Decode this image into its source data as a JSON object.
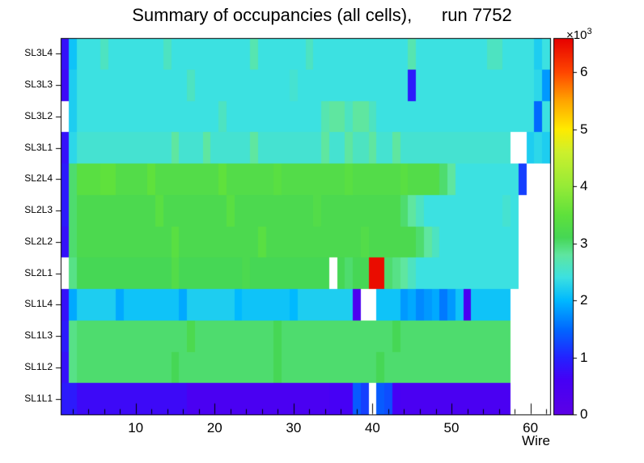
{
  "title": "Summary of occupancies (all cells),      run 7752",
  "chart_data": {
    "type": "heatmap",
    "title": "Summary of occupancies (all cells),      run 7752",
    "xlabel": "Wire",
    "ylabel": "",
    "x_min": 0.5,
    "x_max": 62.5,
    "n_wires": 62,
    "x_major_ticks": [
      10,
      20,
      30,
      40,
      50,
      60
    ],
    "x_minor_tick_step": 2,
    "row_order": "top-to-bottom",
    "values_unit": "×10³ counts",
    "colorbar": {
      "min": 0,
      "max": 6.6,
      "ticks": [
        0,
        1,
        2,
        3,
        4,
        5,
        6
      ],
      "multiplier_base": "×10",
      "multiplier_exp": "3"
    },
    "palette": [
      [
        0.0,
        92,
        0,
        230
      ],
      [
        0.091,
        70,
        0,
        245
      ],
      [
        0.152,
        35,
        35,
        255
      ],
      [
        0.227,
        0,
        105,
        255
      ],
      [
        0.303,
        0,
        185,
        255
      ],
      [
        0.364,
        60,
        225,
        225
      ],
      [
        0.424,
        95,
        230,
        160
      ],
      [
        0.47,
        70,
        215,
        85
      ],
      [
        0.53,
        95,
        225,
        60
      ],
      [
        0.606,
        150,
        235,
        55
      ],
      [
        0.697,
        205,
        240,
        45
      ],
      [
        0.758,
        255,
        235,
        0
      ],
      [
        0.833,
        255,
        165,
        0
      ],
      [
        0.909,
        255,
        70,
        0
      ],
      [
        1.0,
        230,
        0,
        0
      ]
    ],
    "rows": [
      {
        "label": "SL3L4",
        "segments": [
          [
            1,
            0.8
          ],
          [
            1,
            2.1
          ],
          [
            3,
            2.4
          ],
          [
            1,
            2.6
          ],
          [
            7,
            2.4
          ],
          [
            1,
            2.6
          ],
          [
            10,
            2.4
          ],
          [
            1,
            2.7
          ],
          [
            6,
            2.4
          ],
          [
            1,
            2.6
          ],
          [
            12,
            2.4
          ],
          [
            1,
            2.7
          ],
          [
            9,
            2.4
          ],
          [
            2,
            2.6
          ],
          [
            4,
            2.4
          ],
          [
            1,
            2.2
          ],
          [
            1,
            2.4
          ]
        ]
      },
      {
        "label": "SL3L3",
        "segments": [
          [
            1,
            0.7
          ],
          [
            1,
            2.2
          ],
          [
            14,
            2.4
          ],
          [
            1,
            2.6
          ],
          [
            12,
            2.4
          ],
          [
            1,
            2.5
          ],
          [
            14,
            2.4
          ],
          [
            1,
            0.9
          ],
          [
            15,
            2.4
          ],
          [
            1,
            2.3
          ],
          [
            1,
            1.8
          ]
        ]
      },
      {
        "label": "SL3L2",
        "segments": [
          [
            1,
            null
          ],
          [
            1,
            2.2
          ],
          [
            18,
            2.4
          ],
          [
            1,
            2.6
          ],
          [
            12,
            2.4
          ],
          [
            1,
            2.7
          ],
          [
            2,
            2.8
          ],
          [
            1,
            2.6
          ],
          [
            2,
            2.8
          ],
          [
            1,
            2.6
          ],
          [
            20,
            2.4
          ],
          [
            1,
            1.5
          ],
          [
            1,
            2.4
          ]
        ]
      },
      {
        "label": "SL3L1",
        "segments": [
          [
            1,
            0.8
          ],
          [
            1,
            2.3
          ],
          [
            12,
            2.5
          ],
          [
            1,
            2.8
          ],
          [
            3,
            2.5
          ],
          [
            1,
            2.8
          ],
          [
            5,
            2.5
          ],
          [
            1,
            2.8
          ],
          [
            8,
            2.5
          ],
          [
            1,
            2.8
          ],
          [
            2,
            2.5
          ],
          [
            1,
            2.8
          ],
          [
            2,
            2.6
          ],
          [
            1,
            2.8
          ],
          [
            2,
            2.5
          ],
          [
            1,
            2.8
          ],
          [
            14,
            2.5
          ],
          [
            2,
            null
          ],
          [
            1,
            2.2
          ],
          [
            1,
            2.3
          ],
          [
            1,
            2.2
          ]
        ]
      },
      {
        "label": "SL2L4",
        "segments": [
          [
            1,
            0.9
          ],
          [
            1,
            3.0
          ],
          [
            3,
            3.4
          ],
          [
            2,
            3.5
          ],
          [
            4,
            3.3
          ],
          [
            1,
            3.5
          ],
          [
            8,
            3.3
          ],
          [
            1,
            3.5
          ],
          [
            6,
            3.3
          ],
          [
            1,
            3.4
          ],
          [
            8,
            3.3
          ],
          [
            1,
            3.4
          ],
          [
            6,
            3.3
          ],
          [
            1,
            3.4
          ],
          [
            4,
            3.3
          ],
          [
            1,
            3.0
          ],
          [
            1,
            2.8
          ],
          [
            8,
            2.4
          ],
          [
            1,
            1.2
          ],
          [
            3,
            null
          ]
        ]
      },
      {
        "label": "SL2L3",
        "segments": [
          [
            1,
            0.9
          ],
          [
            1,
            3.0
          ],
          [
            10,
            3.2
          ],
          [
            1,
            3.4
          ],
          [
            8,
            3.2
          ],
          [
            1,
            3.4
          ],
          [
            10,
            3.2
          ],
          [
            1,
            3.3
          ],
          [
            10,
            3.2
          ],
          [
            1,
            3.0
          ],
          [
            1,
            2.8
          ],
          [
            1,
            2.6
          ],
          [
            10,
            2.4
          ],
          [
            1,
            2.5
          ],
          [
            1,
            2.4
          ],
          [
            4,
            null
          ]
        ]
      },
      {
        "label": "SL2L2",
        "segments": [
          [
            1,
            0.8
          ],
          [
            1,
            3.0
          ],
          [
            12,
            3.2
          ],
          [
            1,
            3.4
          ],
          [
            10,
            3.2
          ],
          [
            1,
            3.4
          ],
          [
            12,
            3.2
          ],
          [
            1,
            3.3
          ],
          [
            6,
            3.2
          ],
          [
            1,
            3.0
          ],
          [
            1,
            2.8
          ],
          [
            1,
            2.6
          ],
          [
            10,
            2.4
          ],
          [
            4,
            null
          ]
        ]
      },
      {
        "label": "SL2L1",
        "segments": [
          [
            1,
            null
          ],
          [
            1,
            2.9
          ],
          [
            12,
            3.1
          ],
          [
            1,
            3.3
          ],
          [
            8,
            3.1
          ],
          [
            1,
            3.2
          ],
          [
            10,
            3.1
          ],
          [
            1,
            null
          ],
          [
            1,
            3.1
          ],
          [
            1,
            3.0
          ],
          [
            2,
            3.1
          ],
          [
            2,
            6.5
          ],
          [
            1,
            3.0
          ],
          [
            1,
            2.9
          ],
          [
            1,
            2.8
          ],
          [
            1,
            2.6
          ],
          [
            13,
            2.4
          ],
          [
            4,
            null
          ]
        ]
      },
      {
        "label": "SL1L4",
        "segments": [
          [
            1,
            0.8
          ],
          [
            1,
            1.9
          ],
          [
            5,
            2.2
          ],
          [
            1,
            1.9
          ],
          [
            7,
            2.1
          ],
          [
            1,
            1.9
          ],
          [
            6,
            2.2
          ],
          [
            1,
            2.0
          ],
          [
            6,
            2.1
          ],
          [
            1,
            2.0
          ],
          [
            7,
            2.2
          ],
          [
            1,
            0.4
          ],
          [
            2,
            null
          ],
          [
            3,
            2.1
          ],
          [
            1,
            1.8
          ],
          [
            1,
            1.9
          ],
          [
            1,
            1.7
          ],
          [
            1,
            1.8
          ],
          [
            1,
            1.9
          ],
          [
            1,
            1.6
          ],
          [
            1,
            1.8
          ],
          [
            1,
            2.1
          ],
          [
            1,
            0.5
          ],
          [
            5,
            2.1
          ],
          [
            5,
            null
          ]
        ]
      },
      {
        "label": "SL1L3",
        "segments": [
          [
            1,
            0.9
          ],
          [
            1,
            2.9
          ],
          [
            14,
            3.0
          ],
          [
            1,
            3.2
          ],
          [
            10,
            3.0
          ],
          [
            1,
            3.1
          ],
          [
            14,
            3.0
          ],
          [
            1,
            3.1
          ],
          [
            14,
            3.0
          ],
          [
            5,
            null
          ]
        ]
      },
      {
        "label": "SL1L2",
        "segments": [
          [
            1,
            0.8
          ],
          [
            1,
            2.9
          ],
          [
            12,
            3.0
          ],
          [
            1,
            3.1
          ],
          [
            12,
            3.0
          ],
          [
            1,
            3.1
          ],
          [
            12,
            3.0
          ],
          [
            1,
            3.1
          ],
          [
            16,
            3.0
          ],
          [
            5,
            null
          ]
        ]
      },
      {
        "label": "SL1L1",
        "segments": [
          [
            2,
            0.9
          ],
          [
            14,
            0.7
          ],
          [
            18,
            0.5
          ],
          [
            3,
            0.6
          ],
          [
            1,
            1.4
          ],
          [
            1,
            1.2
          ],
          [
            1,
            null
          ],
          [
            1,
            1.4
          ],
          [
            1,
            1.3
          ],
          [
            1,
            0.6
          ],
          [
            14,
            0.5
          ],
          [
            5,
            null
          ]
        ]
      }
    ]
  }
}
